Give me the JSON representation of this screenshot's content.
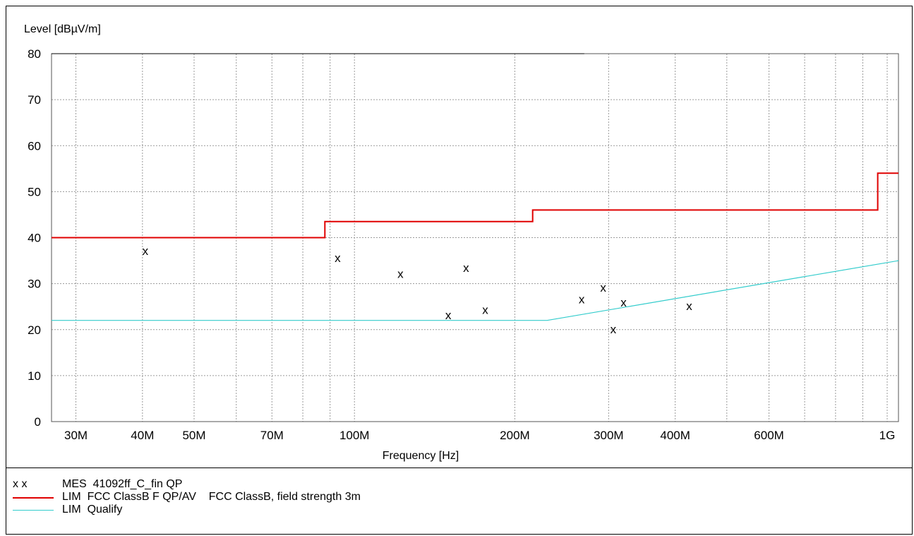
{
  "chart_data": {
    "type": "line",
    "ylabel": "Level [dBµV/m]",
    "xlabel": "Frequency [Hz]",
    "xscale": "log",
    "xlim": [
      27000000,
      1050000000
    ],
    "ylim": [
      0,
      80
    ],
    "yticks": [
      0,
      10,
      20,
      30,
      40,
      50,
      60,
      70,
      80
    ],
    "xtick_labels": [
      {
        "value": 30000000,
        "label": "30M"
      },
      {
        "value": 40000000,
        "label": "40M"
      },
      {
        "value": 50000000,
        "label": "50M"
      },
      {
        "value": 70000000,
        "label": "70M"
      },
      {
        "value": 100000000,
        "label": "100M"
      },
      {
        "value": 200000000,
        "label": "200M"
      },
      {
        "value": 300000000,
        "label": "300M"
      },
      {
        "value": 400000000,
        "label": "400M"
      },
      {
        "value": 600000000,
        "label": "600M"
      },
      {
        "value": 1000000000,
        "label": "1G"
      }
    ],
    "grid": true,
    "legend_position": "bottom",
    "series": [
      {
        "name": "MES  41092ff_C_fin QP",
        "kind": "markers",
        "marker": "x",
        "color": "#000000",
        "points": [
          [
            40500000,
            37.0
          ],
          [
            93000000,
            35.5
          ],
          [
            122000000,
            32.0
          ],
          [
            150000000,
            23.0
          ],
          [
            162000000,
            33.3
          ],
          [
            176000000,
            24.2
          ],
          [
            267000000,
            26.5
          ],
          [
            293000000,
            29.0
          ],
          [
            306000000,
            20.0
          ],
          [
            320000000,
            25.8
          ],
          [
            425000000,
            25.0
          ]
        ]
      },
      {
        "name": "LIM  FCC ClassB F QP/AV",
        "kind": "step",
        "color": "#e00000",
        "description": "FCC ClassB, field strength 3m",
        "points": [
          [
            27000000,
            40.0
          ],
          [
            88000000,
            40.0
          ],
          [
            88000000,
            43.5
          ],
          [
            216000000,
            43.5
          ],
          [
            216000000,
            46.0
          ],
          [
            960000000,
            46.0
          ],
          [
            960000000,
            54.0
          ],
          [
            1050000000,
            54.0
          ]
        ]
      },
      {
        "name": "LIM  Qualify",
        "kind": "line",
        "color": "#33cccc",
        "points": [
          [
            27000000,
            22.0
          ],
          [
            230000000,
            22.0
          ],
          [
            1050000000,
            35.0
          ]
        ]
      }
    ]
  },
  "legend": {
    "items": [
      {
        "symbol": "x x",
        "text": "MES  41092ff_C_fin QP",
        "color": "#000000"
      },
      {
        "symbol": "",
        "text": "LIM  FCC ClassB F QP/AV    FCC ClassB, field strength 3m",
        "color": "#e00000"
      },
      {
        "symbol": "",
        "text": "LIM  Qualify",
        "color": "#33cccc"
      }
    ]
  }
}
